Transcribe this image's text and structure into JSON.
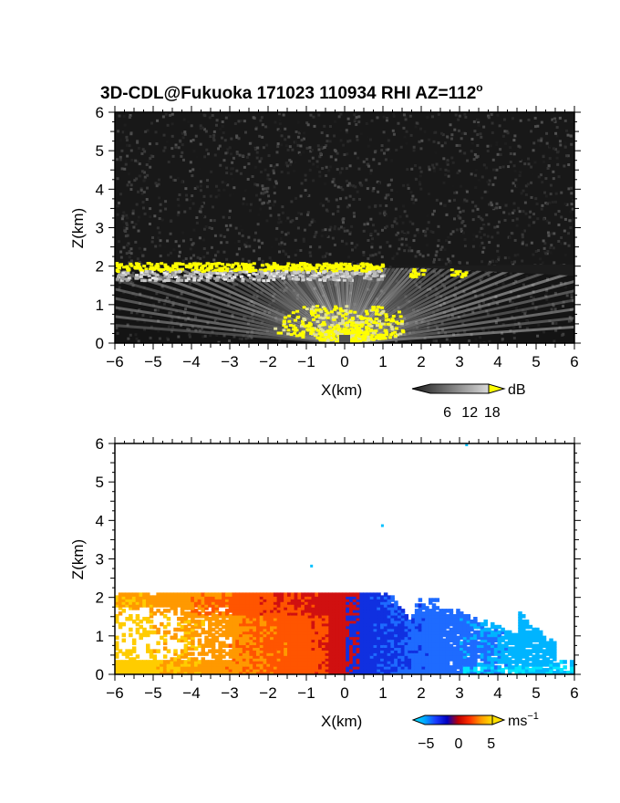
{
  "title": "3D-CDL@Fukuoka 171023 110934 RHI AZ=112",
  "title_degree": "o",
  "chart_data": [
    {
      "type": "heatmap",
      "panel": "reflectivity",
      "xlabel": "X(km)",
      "ylabel": "Z(km)",
      "xlim": [
        -6,
        6
      ],
      "ylim": [
        0,
        6
      ],
      "xticks": [
        "-6",
        "-5",
        "-4",
        "-3",
        "-2",
        "-1",
        "0",
        "1",
        "2",
        "3",
        "4",
        "5",
        "6"
      ],
      "yticks": [
        "0",
        "1",
        "2",
        "3",
        "4",
        "5",
        "6"
      ],
      "grid": false,
      "colorbar": {
        "unit": "dB",
        "ticks": [
          "6",
          "12",
          "18"
        ],
        "tick_values": [
          6,
          12,
          18
        ],
        "range": [
          0,
          20
        ],
        "colors": [
          "#1a1a1a",
          "#5a5a5a",
          "#9a9a9a",
          "#d8d8d8",
          "#ffff00"
        ]
      },
      "features": {
        "cloud_base_layer_km": 2.0,
        "cloud_base_x_range_km": [
          -6,
          1.0
        ],
        "yellow_patches_x_km": [
          1.9,
          3.0
        ],
        "near_radar_echo_x_range_km": [
          -2,
          1.5
        ],
        "near_radar_echo_top_km": 1.0
      }
    },
    {
      "type": "heatmap",
      "panel": "doppler_velocity",
      "xlabel": "X(km)",
      "ylabel": "Z(km)",
      "xlim": [
        -6,
        6
      ],
      "ylim": [
        0,
        6
      ],
      "xticks": [
        "-6",
        "-5",
        "-4",
        "-3",
        "-2",
        "-1",
        "0",
        "1",
        "2",
        "3",
        "4",
        "5",
        "6"
      ],
      "yticks": [
        "0",
        "1",
        "2",
        "3",
        "4",
        "5",
        "6"
      ],
      "grid": false,
      "colorbar": {
        "unit": "ms",
        "unit_exponent": "−1",
        "ticks": [
          "−5",
          "0",
          "5"
        ],
        "tick_values": [
          -5,
          0,
          5
        ],
        "range": [
          -7,
          7
        ],
        "colors": [
          "#00e5ff",
          "#00aaff",
          "#1a3cff",
          "#0000c0",
          "#c00000",
          "#ff3000",
          "#ff9900",
          "#ffe000"
        ]
      },
      "features": {
        "echo_top_km": 2.1,
        "positive_side_x_range_km": [
          -6,
          0
        ],
        "negative_side_x_range_km": [
          0,
          5.5
        ],
        "velocity_left_ms": 5,
        "velocity_right_ms": -5
      }
    }
  ]
}
